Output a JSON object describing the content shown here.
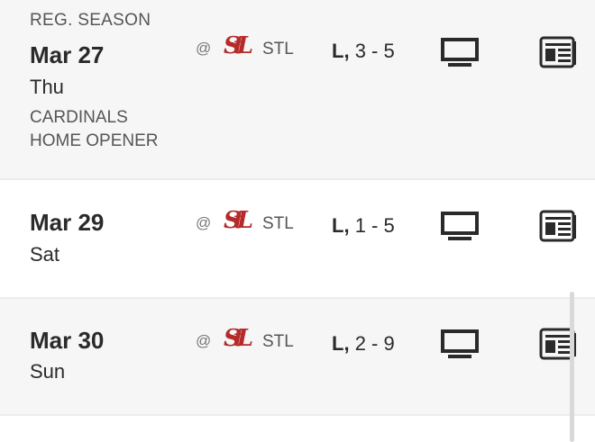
{
  "games": [
    {
      "season_label": "REG. SEASON",
      "date": "Mar 27",
      "day": "Thu",
      "at": "@",
      "opponent": "STL",
      "result_letter": "L,",
      "score": "3 - 5",
      "note_lines": [
        "CARDINALS",
        "HOME OPENER"
      ]
    },
    {
      "date": "Mar 29",
      "day": "Sat",
      "at": "@",
      "opponent": "STL",
      "result_letter": "L,",
      "score": "1 - 5"
    },
    {
      "date": "Mar 30",
      "day": "Sun",
      "at": "@",
      "opponent": "STL",
      "result_letter": "L,",
      "score": "2 - 9"
    }
  ],
  "logo_text": "StL",
  "colors": {
    "cardinals_red": "#b52a2a",
    "row_gray": "#f6f6f6"
  },
  "icons": {
    "broadcast": "tv-icon",
    "recap": "newspaper-icon"
  }
}
